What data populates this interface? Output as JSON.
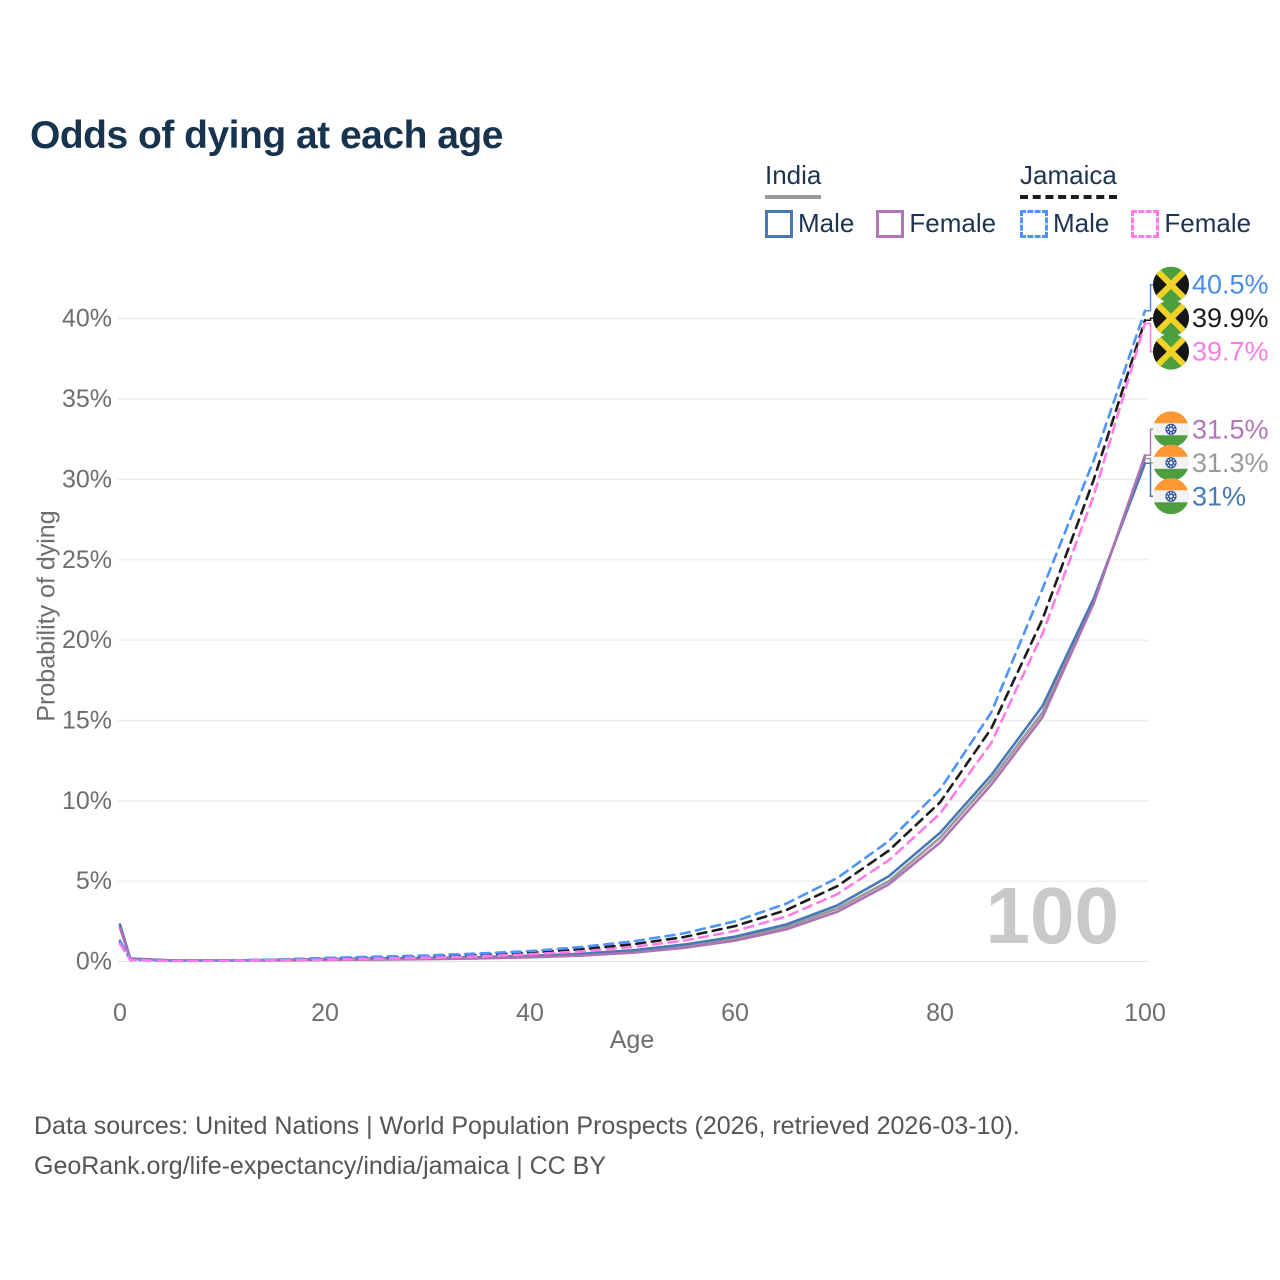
{
  "title": "Odds of dying at each age",
  "legend": {
    "groups": [
      {
        "name": "India",
        "line_style": "solid",
        "line_color": "#9a9a9a",
        "items": [
          {
            "label": "Male",
            "color": "#4779b4",
            "style": "solid"
          },
          {
            "label": "Female",
            "color": "#b175b8",
            "style": "solid"
          }
        ]
      },
      {
        "name": "Jamaica",
        "line_style": "dashed",
        "line_color": "#1c1c1c",
        "items": [
          {
            "label": "Male",
            "color": "#4d94ff",
            "style": "dashed"
          },
          {
            "label": "Female",
            "color": "#ff7ce6",
            "style": "dashed"
          }
        ]
      }
    ]
  },
  "chart_data": {
    "type": "line",
    "title": "Odds of dying at each age",
    "xlabel": "Age",
    "ylabel": "Probability of dying",
    "xlim": [
      0,
      100
    ],
    "ylim": [
      0,
      42
    ],
    "x_ticks": [
      0,
      20,
      40,
      60,
      80,
      100
    ],
    "y_ticks": [
      0,
      5,
      10,
      15,
      20,
      25,
      30,
      35,
      40
    ],
    "y_tick_suffix": "%",
    "grid": true,
    "legend_position": "top-right",
    "watermark": "100",
    "ages": [
      0,
      1,
      5,
      10,
      15,
      20,
      25,
      30,
      35,
      40,
      45,
      50,
      55,
      60,
      65,
      70,
      75,
      80,
      85,
      90,
      95,
      100
    ],
    "series": [
      {
        "name": "India",
        "country": "india",
        "sex": "both",
        "color": "#9a9a9a",
        "dashed": false,
        "end_label": "31.3%",
        "label_color": "#9a9a9a",
        "values": [
          2.2,
          0.17,
          0.065,
          0.055,
          0.085,
          0.12,
          0.15,
          0.18,
          0.23,
          0.3,
          0.42,
          0.62,
          0.95,
          1.42,
          2.15,
          3.3,
          5.0,
          7.7,
          11.3,
          15.5,
          22.4,
          31.3
        ]
      },
      {
        "name": "India Male",
        "country": "india",
        "sex": "male",
        "color": "#4779b4",
        "dashed": false,
        "end_label": "31%",
        "label_color": "#4779b4",
        "values": [
          2.3,
          0.18,
          0.07,
          0.06,
          0.1,
          0.15,
          0.19,
          0.22,
          0.27,
          0.35,
          0.48,
          0.7,
          1.05,
          1.55,
          2.3,
          3.5,
          5.3,
          8.0,
          11.6,
          15.9,
          22.6,
          31.0
        ]
      },
      {
        "name": "India Female",
        "country": "india",
        "sex": "female",
        "color": "#ae72b2",
        "dashed": false,
        "end_label": "31.5%",
        "label_color": "#b175b8",
        "values": [
          2.1,
          0.16,
          0.06,
          0.05,
          0.07,
          0.1,
          0.12,
          0.15,
          0.19,
          0.26,
          0.37,
          0.55,
          0.85,
          1.3,
          2.0,
          3.1,
          4.8,
          7.4,
          11.0,
          15.2,
          22.3,
          31.5
        ]
      },
      {
        "name": "Jamaica",
        "country": "jamaica",
        "sex": "both",
        "color": "#1c1c1c",
        "dashed": true,
        "end_label": "39.9%",
        "label_color": "#1c1c1c",
        "values": [
          1.2,
          0.1,
          0.05,
          0.06,
          0.1,
          0.17,
          0.23,
          0.3,
          0.41,
          0.55,
          0.76,
          1.07,
          1.52,
          2.2,
          3.2,
          4.7,
          6.9,
          9.9,
          14.5,
          21.3,
          30.0,
          39.9
        ]
      },
      {
        "name": "Jamaica Male",
        "country": "jamaica",
        "sex": "male",
        "color": "#4d94ff",
        "dashed": true,
        "end_label": "40.5%",
        "label_color": "#4a8ae8",
        "values": [
          1.3,
          0.11,
          0.05,
          0.06,
          0.12,
          0.22,
          0.3,
          0.38,
          0.5,
          0.65,
          0.9,
          1.25,
          1.75,
          2.5,
          3.6,
          5.2,
          7.5,
          10.7,
          15.5,
          23.2,
          31.2,
          40.5
        ]
      },
      {
        "name": "Jamaica Female",
        "country": "jamaica",
        "sex": "female",
        "color": "#ff7ce6",
        "dashed": true,
        "end_label": "39.7%",
        "label_color": "#ff7ce6",
        "values": [
          1.1,
          0.09,
          0.04,
          0.05,
          0.08,
          0.12,
          0.17,
          0.23,
          0.32,
          0.45,
          0.63,
          0.9,
          1.3,
          1.9,
          2.8,
          4.2,
          6.3,
          9.2,
          13.6,
          20.4,
          29.0,
          39.7
        ]
      }
    ]
  },
  "footer": {
    "line1": "Data sources: United Nations | World Population Prospects (2026, retrieved 2026-03-10).",
    "line2": "GeoRank.org/life-expectancy/india/jamaica | CC BY"
  }
}
